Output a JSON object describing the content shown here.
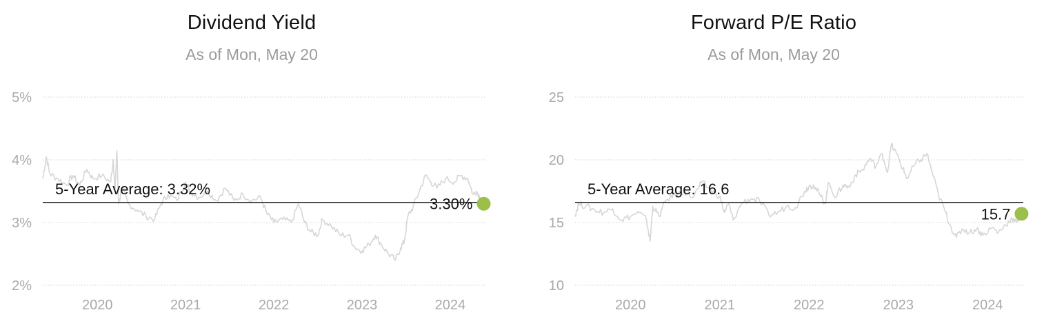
{
  "chart_data": [
    {
      "type": "line",
      "title": "Dividend Yield",
      "subtitle": "As of Mon, May 20",
      "y_unit": "%",
      "ylim": [
        2,
        5
      ],
      "y_ticks": [
        2,
        3,
        4,
        5
      ],
      "y_tick_labels": [
        "2%",
        "3%",
        "4%",
        "5%"
      ],
      "xlim": [
        2019.38,
        2024.4
      ],
      "x_ticks": [
        2020,
        2021,
        2022,
        2023,
        2024
      ],
      "x_tick_labels": [
        "2020",
        "2021",
        "2022",
        "2023",
        "2024"
      ],
      "grid": true,
      "average": {
        "label": "5-Year Average: 3.32%",
        "value": 3.32
      },
      "current": {
        "label": "3.30%",
        "x": 2024.38,
        "value": 3.3
      },
      "series": [
        {
          "values": [
            [
              2019.38,
              3.7
            ],
            [
              2019.42,
              4.05
            ],
            [
              2019.46,
              3.78
            ],
            [
              2019.55,
              3.7
            ],
            [
              2019.65,
              3.6
            ],
            [
              2019.72,
              3.75
            ],
            [
              2019.8,
              3.6
            ],
            [
              2019.88,
              3.85
            ],
            [
              2019.95,
              3.7
            ],
            [
              2020.05,
              3.75
            ],
            [
              2020.15,
              3.65
            ],
            [
              2020.18,
              4.0
            ],
            [
              2020.2,
              3.5
            ],
            [
              2020.22,
              4.15
            ],
            [
              2020.24,
              3.3
            ],
            [
              2020.28,
              3.55
            ],
            [
              2020.35,
              3.3
            ],
            [
              2020.45,
              3.2
            ],
            [
              2020.55,
              3.1
            ],
            [
              2020.65,
              3.05
            ],
            [
              2020.72,
              3.3
            ],
            [
              2020.8,
              3.45
            ],
            [
              2020.9,
              3.35
            ],
            [
              2021.0,
              3.65
            ],
            [
              2021.05,
              3.5
            ],
            [
              2021.15,
              3.4
            ],
            [
              2021.25,
              3.5
            ],
            [
              2021.35,
              3.35
            ],
            [
              2021.45,
              3.55
            ],
            [
              2021.55,
              3.35
            ],
            [
              2021.65,
              3.45
            ],
            [
              2021.75,
              3.35
            ],
            [
              2021.85,
              3.4
            ],
            [
              2021.92,
              3.15
            ],
            [
              2022.0,
              3.0
            ],
            [
              2022.1,
              3.05
            ],
            [
              2022.2,
              3.0
            ],
            [
              2022.28,
              3.3
            ],
            [
              2022.35,
              3.0
            ],
            [
              2022.42,
              2.85
            ],
            [
              2022.5,
              2.8
            ],
            [
              2022.55,
              3.05
            ],
            [
              2022.65,
              2.95
            ],
            [
              2022.75,
              2.8
            ],
            [
              2022.85,
              2.8
            ],
            [
              2022.92,
              2.6
            ],
            [
              2023.0,
              2.55
            ],
            [
              2023.08,
              2.65
            ],
            [
              2023.15,
              2.8
            ],
            [
              2023.22,
              2.65
            ],
            [
              2023.3,
              2.5
            ],
            [
              2023.38,
              2.4
            ],
            [
              2023.44,
              2.6
            ],
            [
              2023.48,
              2.7
            ],
            [
              2023.52,
              3.1
            ],
            [
              2023.58,
              3.25
            ],
            [
              2023.65,
              3.5
            ],
            [
              2023.72,
              3.75
            ],
            [
              2023.78,
              3.65
            ],
            [
              2023.85,
              3.55
            ],
            [
              2023.95,
              3.7
            ],
            [
              2024.05,
              3.65
            ],
            [
              2024.12,
              3.75
            ],
            [
              2024.2,
              3.7
            ],
            [
              2024.26,
              3.45
            ],
            [
              2024.3,
              3.5
            ],
            [
              2024.34,
              3.4
            ],
            [
              2024.38,
              3.3
            ]
          ]
        }
      ]
    },
    {
      "type": "line",
      "title": "Forward P/E Ratio",
      "subtitle": "As of Mon, May 20",
      "y_unit": "",
      "ylim": [
        10,
        25
      ],
      "y_ticks": [
        10,
        15,
        20,
        25
      ],
      "y_tick_labels": [
        "10",
        "15",
        "20",
        "25"
      ],
      "xlim": [
        2019.38,
        2024.4
      ],
      "x_ticks": [
        2020,
        2021,
        2022,
        2023,
        2024
      ],
      "x_tick_labels": [
        "2020",
        "2021",
        "2022",
        "2023",
        "2024"
      ],
      "grid": true,
      "average": {
        "label": "5-Year Average: 16.6",
        "value": 16.6
      },
      "current": {
        "label": "15.7",
        "x": 2024.38,
        "value": 15.7
      },
      "series": [
        {
          "values": [
            [
              2019.38,
              15.6
            ],
            [
              2019.42,
              16.5
            ],
            [
              2019.5,
              16.3
            ],
            [
              2019.6,
              16.0
            ],
            [
              2019.7,
              15.8
            ],
            [
              2019.8,
              16.1
            ],
            [
              2019.9,
              15.2
            ],
            [
              2020.0,
              15.5
            ],
            [
              2020.1,
              15.8
            ],
            [
              2020.18,
              15.2
            ],
            [
              2020.22,
              13.5
            ],
            [
              2020.25,
              16.3
            ],
            [
              2020.32,
              15.5
            ],
            [
              2020.4,
              16.8
            ],
            [
              2020.5,
              17.2
            ],
            [
              2020.6,
              17.5
            ],
            [
              2020.7,
              17.0
            ],
            [
              2020.8,
              18.2
            ],
            [
              2020.9,
              17.6
            ],
            [
              2021.0,
              17.1
            ],
            [
              2021.05,
              15.8
            ],
            [
              2021.1,
              16.5
            ],
            [
              2021.15,
              15.2
            ],
            [
              2021.25,
              16.6
            ],
            [
              2021.35,
              16.9
            ],
            [
              2021.45,
              16.7
            ],
            [
              2021.55,
              15.6
            ],
            [
              2021.65,
              15.8
            ],
            [
              2021.75,
              16.3
            ],
            [
              2021.85,
              16.2
            ],
            [
              2021.95,
              17.5
            ],
            [
              2022.0,
              17.9
            ],
            [
              2022.05,
              18.0
            ],
            [
              2022.12,
              17.2
            ],
            [
              2022.18,
              16.5
            ],
            [
              2022.22,
              18.2
            ],
            [
              2022.3,
              17.0
            ],
            [
              2022.38,
              18.0
            ],
            [
              2022.45,
              17.8
            ],
            [
              2022.52,
              18.8
            ],
            [
              2022.6,
              19.2
            ],
            [
              2022.68,
              20.1
            ],
            [
              2022.75,
              19.5
            ],
            [
              2022.82,
              20.5
            ],
            [
              2022.88,
              19.0
            ],
            [
              2022.92,
              21.2
            ],
            [
              2022.98,
              20.5
            ],
            [
              2023.05,
              19.3
            ],
            [
              2023.1,
              18.5
            ],
            [
              2023.18,
              19.6
            ],
            [
              2023.25,
              20.0
            ],
            [
              2023.32,
              20.5
            ],
            [
              2023.38,
              19.0
            ],
            [
              2023.45,
              17.2
            ],
            [
              2023.52,
              16.0
            ],
            [
              2023.58,
              14.8
            ],
            [
              2023.65,
              13.8
            ],
            [
              2023.72,
              14.5
            ],
            [
              2023.8,
              14.2
            ],
            [
              2023.88,
              14.5
            ],
            [
              2023.95,
              14.0
            ],
            [
              2024.05,
              14.6
            ],
            [
              2024.12,
              14.2
            ],
            [
              2024.2,
              14.8
            ],
            [
              2024.26,
              15.3
            ],
            [
              2024.32,
              15.0
            ],
            [
              2024.38,
              15.7
            ]
          ]
        }
      ]
    }
  ],
  "colors": {
    "series_line": "#d6d6d6",
    "average_line": "#1a1a1a",
    "grid_line": "#d9d9d9",
    "marker": "#9bbf4a",
    "tick_text": "#a9a9a9",
    "title_text": "#111111",
    "subtitle_text": "#9b9b9b"
  }
}
